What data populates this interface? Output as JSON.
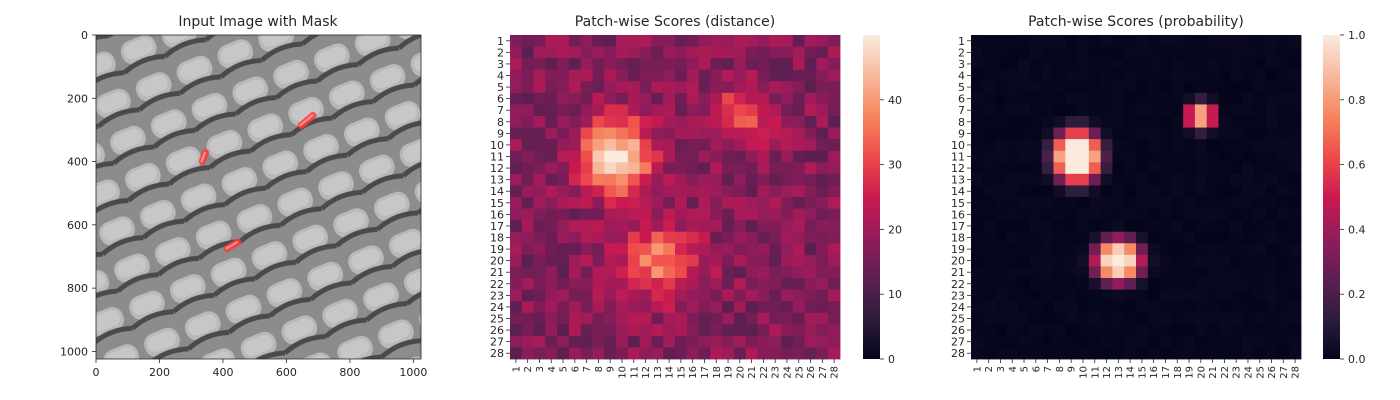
{
  "chart_data": [
    {
      "type": "image",
      "title": "Input Image with Mask",
      "xlim": [
        0,
        1024
      ],
      "ylim": [
        1024,
        0
      ],
      "x_ticks": [
        "0",
        "200",
        "400",
        "600",
        "800",
        "1000"
      ],
      "y_ticks": [
        "0",
        "200",
        "400",
        "600",
        "800",
        "1000"
      ],
      "mask_regions": [
        {
          "cx": 665,
          "cy": 270,
          "length": 70,
          "angle": -40
        },
        {
          "cx": 340,
          "cy": 385,
          "length": 50,
          "angle": -70
        },
        {
          "cx": 430,
          "cy": 665,
          "length": 60,
          "angle": -30
        }
      ],
      "mask_color": "#ff3b3b"
    },
    {
      "type": "heatmap",
      "title": "Patch-wise Scores (distance)",
      "grid": [
        28,
        28
      ],
      "x_ticks": [
        "1",
        "2",
        "3",
        "4",
        "5",
        "6",
        "7",
        "8",
        "9",
        "10",
        "11",
        "12",
        "13",
        "14",
        "15",
        "16",
        "17",
        "18",
        "19",
        "20",
        "21",
        "22",
        "23",
        "24",
        "25",
        "26",
        "27",
        "28"
      ],
      "y_ticks": [
        "1",
        "2",
        "3",
        "4",
        "5",
        "6",
        "7",
        "8",
        "9",
        "10",
        "11",
        "12",
        "13",
        "14",
        "15",
        "16",
        "17",
        "18",
        "19",
        "20",
        "21",
        "22",
        "23",
        "24",
        "25",
        "26",
        "27",
        "28"
      ],
      "colorbar_range": [
        0,
        50
      ],
      "colorbar_ticks": [
        "0",
        "10",
        "20",
        "30",
        "40"
      ],
      "background_level": 17,
      "hotspots": [
        {
          "row": 11,
          "col": 9.5,
          "peak": 49,
          "sigma_row": 2.3,
          "sigma_col": 2.1
        },
        {
          "row": 20,
          "col": 13,
          "peak": 37,
          "sigma_row": 2.2,
          "sigma_col": 2.4
        },
        {
          "row": 7.5,
          "col": 20,
          "peak": 33,
          "sigma_row": 1.7,
          "sigma_col": 1.9
        }
      ],
      "colormap": "rocket"
    },
    {
      "type": "heatmap",
      "title": "Patch-wise Scores (probability)",
      "grid": [
        28,
        28
      ],
      "x_ticks": [
        "1",
        "2",
        "3",
        "4",
        "5",
        "6",
        "7",
        "8",
        "9",
        "10",
        "11",
        "12",
        "13",
        "14",
        "15",
        "16",
        "17",
        "18",
        "19",
        "20",
        "21",
        "22",
        "23",
        "24",
        "25",
        "26",
        "27",
        "28"
      ],
      "y_ticks": [
        "1",
        "2",
        "3",
        "4",
        "5",
        "6",
        "7",
        "8",
        "9",
        "10",
        "11",
        "12",
        "13",
        "14",
        "15",
        "16",
        "17",
        "18",
        "19",
        "20",
        "21",
        "22",
        "23",
        "24",
        "25",
        "26",
        "27",
        "28"
      ],
      "colorbar_range": [
        0,
        1
      ],
      "colorbar_ticks": [
        "0.0",
        "0.2",
        "0.4",
        "0.6",
        "0.8",
        "1.0"
      ],
      "hotspots": [
        {
          "row": 11,
          "col": 9.5,
          "peak": 1.0,
          "sigma_row": 1.9,
          "sigma_col": 1.7
        },
        {
          "row": 20,
          "col": 13,
          "peak": 0.9,
          "sigma_row": 1.6,
          "sigma_col": 1.7
        },
        {
          "row": 7.5,
          "col": 20,
          "peak": 0.75,
          "sigma_row": 1.0,
          "sigma_col": 1.1
        }
      ],
      "colormap": "rocket"
    }
  ]
}
